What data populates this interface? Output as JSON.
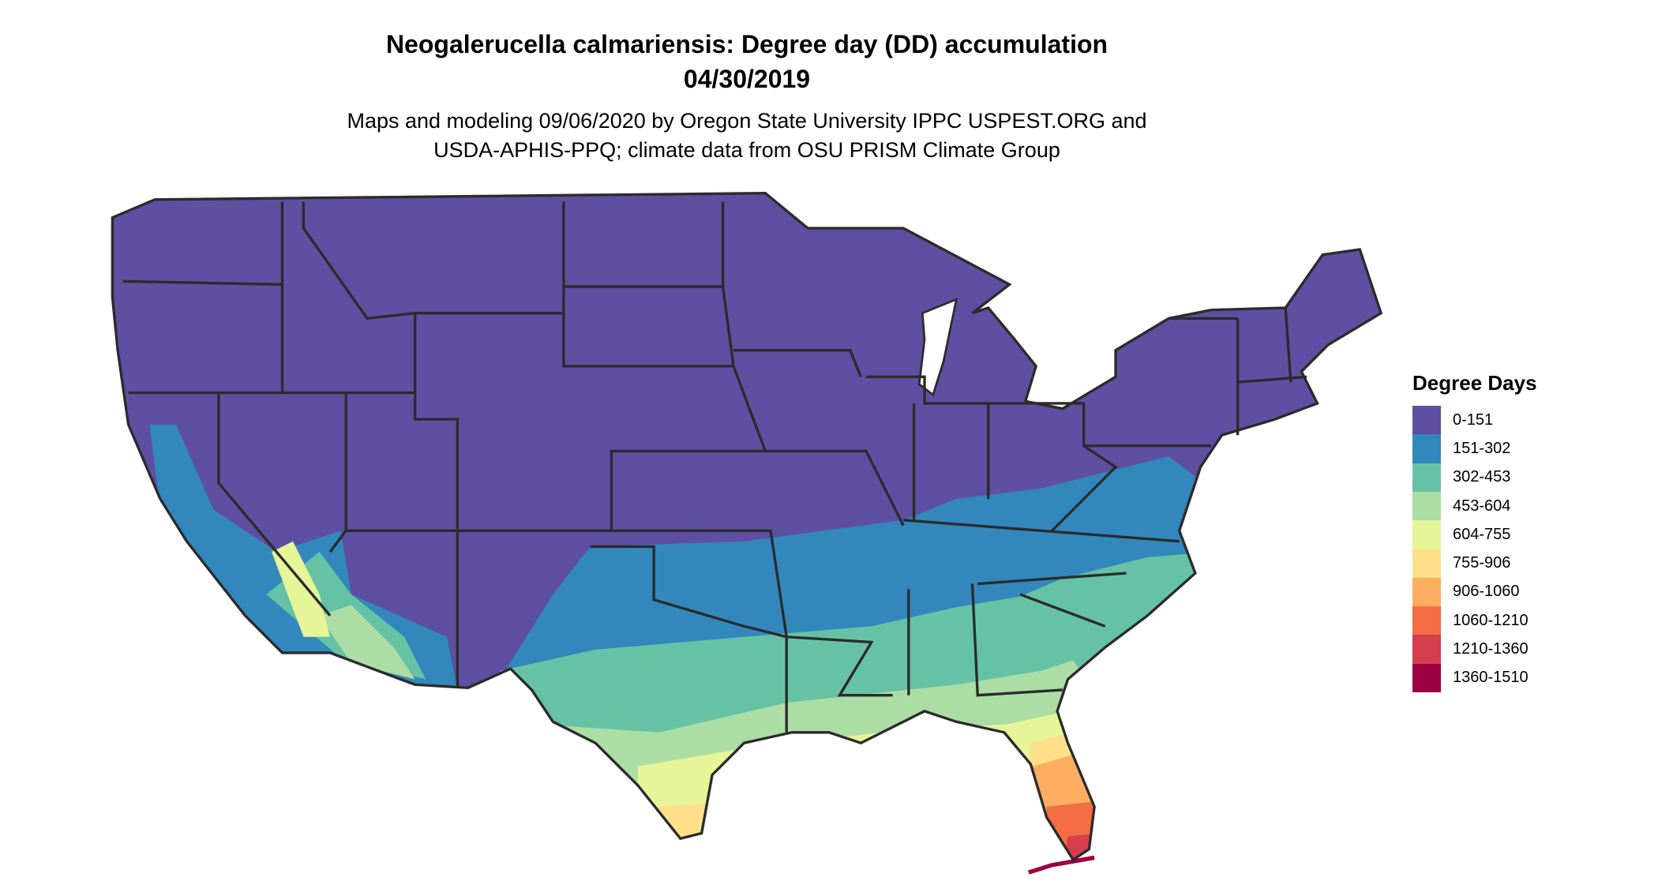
{
  "title": "Neogalerucella calmariensis: Degree day (DD) accumulation",
  "date": "04/30/2019",
  "subtitle": [
    "Maps and modeling 09/06/2020 by Oregon State University IPPC USPEST.ORG and",
    "USDA-APHIS-PPQ; climate data from OSU PRISM Climate Group"
  ],
  "legend": {
    "title": "Degree Days",
    "items": [
      {
        "label": "0-151",
        "color": "#5E4FA2"
      },
      {
        "label": "151-302",
        "color": "#3288BD"
      },
      {
        "label": "302-453",
        "color": "#66C2A5"
      },
      {
        "label": "453-604",
        "color": "#ABDDA4"
      },
      {
        "label": "604-755",
        "color": "#E6F598"
      },
      {
        "label": "755-906",
        "color": "#FEE08B"
      },
      {
        "label": "906-1060",
        "color": "#FDAE61"
      },
      {
        "label": "1060-1210",
        "color": "#F46D43"
      },
      {
        "label": "1210-1360",
        "color": "#D53E4F"
      },
      {
        "label": "1360-1510",
        "color": "#9E0142"
      }
    ]
  },
  "border_color": "#2b2b2b"
}
